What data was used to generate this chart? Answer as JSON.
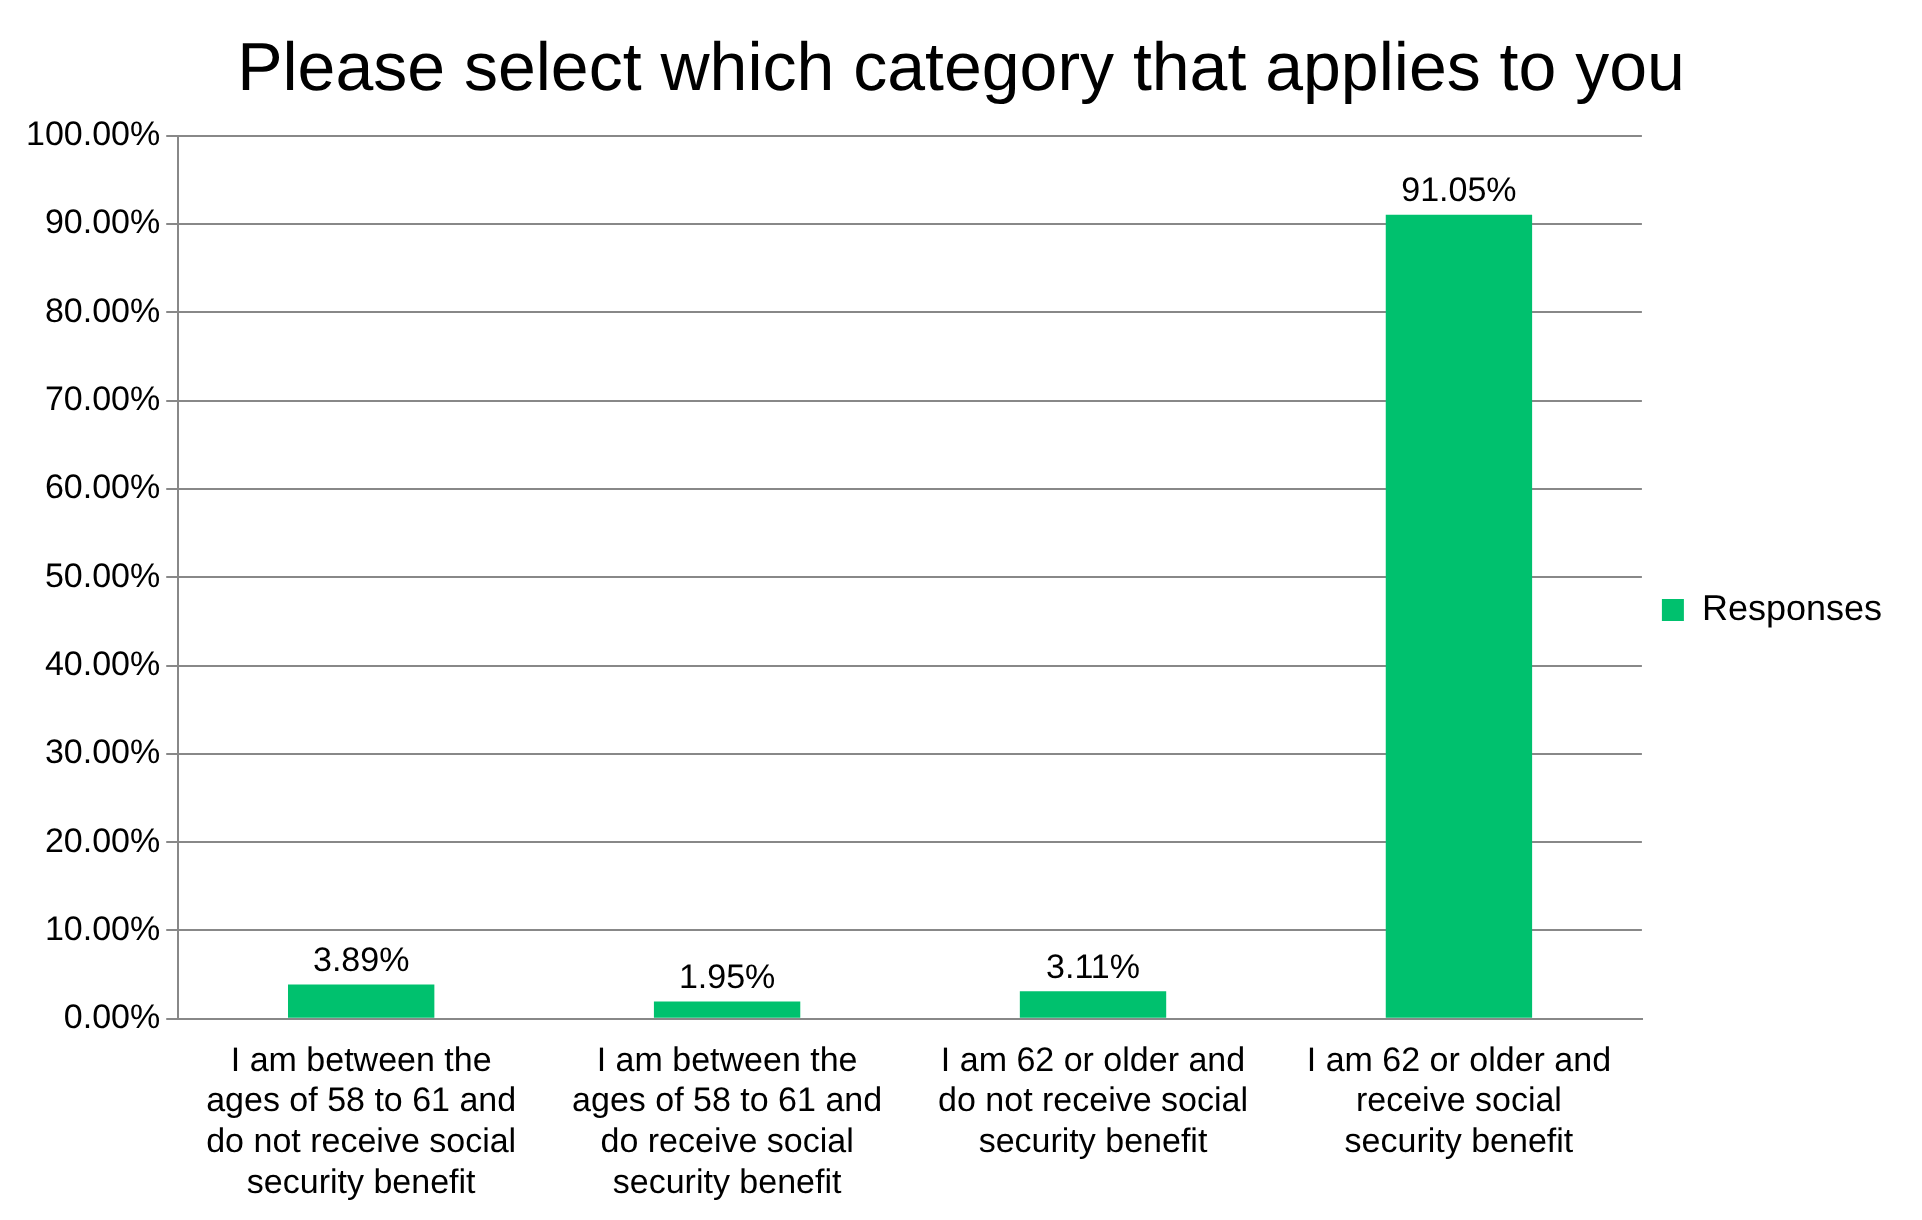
{
  "chart_data": {
    "type": "bar",
    "title": "Please select which category that applies to you",
    "categories": [
      "I am between the ages of 58 to 61 and do not receive social security benefit",
      "I am between the ages of 58 to 61 and do receive social security benefit",
      "I am 62 or older and do not receive social security benefit",
      "I am 62 or older and receive social security benefit"
    ],
    "series": [
      {
        "name": "Responses",
        "color": "#00c16e",
        "values": [
          3.89,
          1.95,
          3.11,
          91.05
        ],
        "value_labels": [
          "3.89%",
          "1.95%",
          "3.11%",
          "91.05%"
        ]
      }
    ],
    "ylim": [
      0,
      100
    ],
    "yticks": [
      {
        "value": 0,
        "label": "0.00%"
      },
      {
        "value": 10,
        "label": "10.00%"
      },
      {
        "value": 20,
        "label": "20.00%"
      },
      {
        "value": 30,
        "label": "30.00%"
      },
      {
        "value": 40,
        "label": "40.00%"
      },
      {
        "value": 50,
        "label": "50.00%"
      },
      {
        "value": 60,
        "label": "60.00%"
      },
      {
        "value": 70,
        "label": "70.00%"
      },
      {
        "value": 80,
        "label": "80.00%"
      },
      {
        "value": 90,
        "label": "90.00%"
      },
      {
        "value": 100,
        "label": "100.00%"
      }
    ],
    "grid": "y",
    "legend": "right"
  }
}
